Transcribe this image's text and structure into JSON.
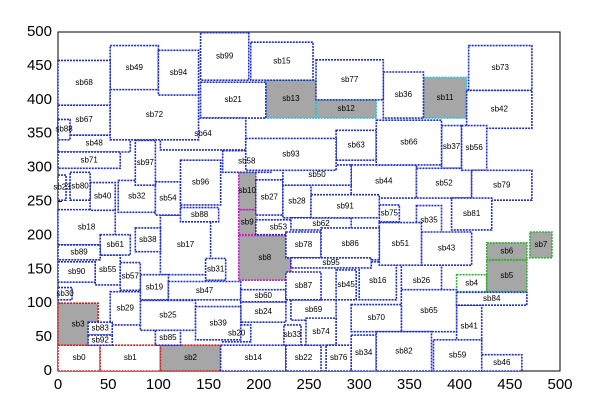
{
  "chart_data": {
    "type": "rectangles",
    "color": "#1f2fc8",
    "fill": "#a6a6a6",
    "xlim": [
      0,
      500
    ],
    "ylim": [
      0,
      500
    ],
    "xticks": [
      0,
      50,
      100,
      150,
      200,
      250,
      300,
      350,
      400,
      450,
      500
    ],
    "yticks": [
      0,
      50,
      100,
      150,
      200,
      250,
      300,
      350,
      400,
      450,
      500
    ],
    "blocks": [
      {
        "label": "sb0",
        "x": 0,
        "y": 0,
        "w": 42,
        "h": 38,
        "color": "#d02020"
      },
      {
        "label": "sb1",
        "x": 42,
        "y": 0,
        "w": 60,
        "h": 38,
        "color": "#d02020"
      },
      {
        "label": "sb2",
        "x": 102,
        "y": 0,
        "w": 60,
        "h": 38,
        "color": "#d02020",
        "filled": true
      },
      {
        "label": "sb3",
        "x": 0,
        "y": 38,
        "w": 40,
        "h": 62,
        "color": "#d02020",
        "filled": true
      },
      {
        "label": "sb4",
        "x": 397,
        "y": 117,
        "w": 30,
        "h": 25,
        "color": "#30b030"
      },
      {
        "label": "sb5",
        "x": 427,
        "y": 117,
        "w": 40,
        "h": 47,
        "color": "#30b030",
        "filled": true
      },
      {
        "label": "sb6",
        "x": 427,
        "y": 164,
        "w": 40,
        "h": 25,
        "color": "#30b030",
        "filled": true
      },
      {
        "label": "sb7",
        "x": 470,
        "y": 167,
        "w": 22,
        "h": 38,
        "color": "#30b030",
        "filled": true
      },
      {
        "label": "sb8",
        "x": 180,
        "y": 134,
        "w": 52,
        "h": 66,
        "color": "#c020c0",
        "filled": true
      },
      {
        "label": "sb9",
        "x": 180,
        "y": 201,
        "w": 17,
        "h": 37,
        "color": "#c020c0",
        "filled": true
      },
      {
        "label": "sb10",
        "x": 180,
        "y": 238,
        "w": 17,
        "h": 56,
        "color": "#c020c0",
        "filled": true
      },
      {
        "label": "sb11",
        "x": 364,
        "y": 373,
        "w": 43,
        "h": 60,
        "color": "#30c0d8",
        "filled": true
      },
      {
        "label": "sb12",
        "x": 257,
        "y": 373,
        "w": 60,
        "h": 27,
        "color": "#30c0d8",
        "filled": true
      },
      {
        "label": "sb13",
        "x": 207,
        "y": 373,
        "w": 50,
        "h": 56,
        "color": "#30c0d8",
        "filled": true
      },
      {
        "label": "sb14",
        "x": 162,
        "y": 0,
        "w": 65,
        "h": 38
      },
      {
        "label": "sb15",
        "x": 192,
        "y": 429,
        "w": 62,
        "h": 56
      },
      {
        "label": "sb16",
        "x": 300,
        "y": 105,
        "w": 37,
        "h": 56
      },
      {
        "label": "sb17",
        "x": 102,
        "y": 142,
        "w": 50,
        "h": 88
      },
      {
        "label": "sb18",
        "x": 0,
        "y": 186,
        "w": 57,
        "h": 52
      },
      {
        "label": "sb19",
        "x": 82,
        "y": 105,
        "w": 28,
        "h": 37
      },
      {
        "label": "sb20",
        "x": 164,
        "y": 43,
        "w": 28,
        "h": 25
      },
      {
        "label": "sb21",
        "x": 142,
        "y": 373,
        "w": 65,
        "h": 53
      },
      {
        "label": "sb22",
        "x": 227,
        "y": 0,
        "w": 35,
        "h": 38
      },
      {
        "label": "sb23",
        "x": 0,
        "y": 252,
        "w": 8,
        "h": 37
      },
      {
        "label": "sb24",
        "x": 182,
        "y": 72,
        "w": 45,
        "h": 30
      },
      {
        "label": "sb25",
        "x": 82,
        "y": 60,
        "w": 55,
        "h": 44
      },
      {
        "label": "sb26",
        "x": 342,
        "y": 105,
        "w": 40,
        "h": 56
      },
      {
        "label": "sb27",
        "x": 197,
        "y": 230,
        "w": 27,
        "h": 52
      },
      {
        "label": "sb28",
        "x": 224,
        "y": 226,
        "w": 28,
        "h": 49
      },
      {
        "label": "sb29",
        "x": 52,
        "y": 68,
        "w": 30,
        "h": 49
      },
      {
        "label": "sb30",
        "x": 0,
        "y": 105,
        "w": 14,
        "h": 18
      },
      {
        "label": "sb31",
        "x": 147,
        "y": 134,
        "w": 20,
        "h": 32
      },
      {
        "label": "sb32",
        "x": 60,
        "y": 234,
        "w": 37,
        "h": 47
      },
      {
        "label": "sb33",
        "x": 225,
        "y": 38,
        "w": 17,
        "h": 30
      },
      {
        "label": "sb34",
        "x": 292,
        "y": 0,
        "w": 25,
        "h": 53
      },
      {
        "label": "sb35",
        "x": 357,
        "y": 200,
        "w": 25,
        "h": 44
      },
      {
        "label": "sb36",
        "x": 324,
        "y": 373,
        "w": 40,
        "h": 68
      },
      {
        "label": "sb37",
        "x": 382,
        "y": 299,
        "w": 20,
        "h": 63
      },
      {
        "label": "sb38",
        "x": 77,
        "y": 176,
        "w": 25,
        "h": 35
      },
      {
        "label": "sb39",
        "x": 137,
        "y": 46,
        "w": 45,
        "h": 49
      },
      {
        "label": "sb40",
        "x": 32,
        "y": 237,
        "w": 25,
        "h": 41
      },
      {
        "label": "sb41",
        "x": 397,
        "y": 34,
        "w": 25,
        "h": 63
      },
      {
        "label": "sb42",
        "x": 407,
        "y": 358,
        "w": 65,
        "h": 56
      },
      {
        "label": "sb43",
        "x": 362,
        "y": 156,
        "w": 50,
        "h": 49
      },
      {
        "label": "sb44",
        "x": 292,
        "y": 255,
        "w": 65,
        "h": 49
      },
      {
        "label": "sb45",
        "x": 277,
        "y": 105,
        "w": 20,
        "h": 44
      },
      {
        "label": "sb46",
        "x": 422,
        "y": 0,
        "w": 40,
        "h": 24
      },
      {
        "label": "sb47",
        "x": 110,
        "y": 105,
        "w": 72,
        "h": 27
      },
      {
        "label": "sb48",
        "x": 0,
        "y": 323,
        "w": 72,
        "h": 25
      },
      {
        "label": "sb49",
        "x": 52,
        "y": 414,
        "w": 48,
        "h": 66
      },
      {
        "label": "sb50",
        "x": 224,
        "y": 274,
        "w": 68,
        "h": 30
      },
      {
        "label": "sb51",
        "x": 320,
        "y": 156,
        "w": 42,
        "h": 63
      },
      {
        "label": "sb52",
        "x": 357,
        "y": 255,
        "w": 55,
        "h": 44
      },
      {
        "label": "sb53",
        "x": 197,
        "y": 201,
        "w": 45,
        "h": 22
      },
      {
        "label": "sb54",
        "x": 97,
        "y": 230,
        "w": 25,
        "h": 49
      },
      {
        "label": "sb55",
        "x": 37,
        "y": 127,
        "w": 25,
        "h": 44
      },
      {
        "label": "sb56",
        "x": 402,
        "y": 296,
        "w": 25,
        "h": 66
      },
      {
        "label": "sb57",
        "x": 62,
        "y": 119,
        "w": 20,
        "h": 41
      },
      {
        "label": "sb58",
        "x": 164,
        "y": 293,
        "w": 48,
        "h": 32
      },
      {
        "label": "sb59",
        "x": 374,
        "y": 0,
        "w": 48,
        "h": 46
      },
      {
        "label": "sb60",
        "x": 182,
        "y": 102,
        "w": 45,
        "h": 18
      },
      {
        "label": "sb61",
        "x": 42,
        "y": 171,
        "w": 30,
        "h": 30
      },
      {
        "label": "sb62",
        "x": 232,
        "y": 208,
        "w": 60,
        "h": 18
      },
      {
        "label": "sb63",
        "x": 277,
        "y": 311,
        "w": 40,
        "h": 44
      },
      {
        "label": "sb64",
        "x": 102,
        "y": 326,
        "w": 85,
        "h": 47
      },
      {
        "label": "sb65",
        "x": 342,
        "y": 58,
        "w": 55,
        "h": 62
      },
      {
        "label": "sb66",
        "x": 317,
        "y": 304,
        "w": 65,
        "h": 66
      },
      {
        "label": "sb67",
        "x": 0,
        "y": 348,
        "w": 52,
        "h": 44
      },
      {
        "label": "sb68",
        "x": 0,
        "y": 392,
        "w": 52,
        "h": 66
      },
      {
        "label": "sb69",
        "x": 232,
        "y": 75,
        "w": 45,
        "h": 30
      },
      {
        "label": "sb70",
        "x": 292,
        "y": 58,
        "w": 50,
        "h": 40
      },
      {
        "label": "sb71",
        "x": 0,
        "y": 299,
        "w": 62,
        "h": 24
      },
      {
        "label": "sb72",
        "x": 52,
        "y": 341,
        "w": 88,
        "h": 74
      },
      {
        "label": "sb73",
        "x": 409,
        "y": 414,
        "w": 63,
        "h": 66
      },
      {
        "label": "sb74",
        "x": 247,
        "y": 38,
        "w": 30,
        "h": 40
      },
      {
        "label": "sb75",
        "x": 320,
        "y": 220,
        "w": 20,
        "h": 25
      },
      {
        "label": "sb76",
        "x": 267,
        "y": 0,
        "w": 25,
        "h": 38
      },
      {
        "label": "sb77",
        "x": 257,
        "y": 400,
        "w": 67,
        "h": 59
      },
      {
        "label": "sb78",
        "x": 227,
        "y": 167,
        "w": 35,
        "h": 38
      },
      {
        "label": "sb79",
        "x": 412,
        "y": 252,
        "w": 60,
        "h": 44
      },
      {
        "label": "sb80",
        "x": 12,
        "y": 252,
        "w": 20,
        "h": 41
      },
      {
        "label": "sb81",
        "x": 392,
        "y": 208,
        "w": 40,
        "h": 47
      },
      {
        "label": "sb82",
        "x": 317,
        "y": 0,
        "w": 55,
        "h": 58
      },
      {
        "label": "sb83",
        "x": 30,
        "y": 53,
        "w": 24,
        "h": 19
      },
      {
        "label": "sb84",
        "x": 397,
        "y": 97,
        "w": 70,
        "h": 19
      },
      {
        "label": "sb85",
        "x": 97,
        "y": 38,
        "w": 25,
        "h": 22
      },
      {
        "label": "sb86",
        "x": 262,
        "y": 164,
        "w": 58,
        "h": 47
      },
      {
        "label": "sb87",
        "x": 227,
        "y": 105,
        "w": 35,
        "h": 41
      },
      {
        "label": "sb88",
        "x": 0,
        "y": 341,
        "w": 12,
        "h": 30
      },
      {
        "label": "sb88",
        "x": 122,
        "y": 220,
        "w": 38,
        "h": 21
      },
      {
        "label": "sb89",
        "x": 0,
        "y": 164,
        "w": 42,
        "h": 22
      },
      {
        "label": "sb90",
        "x": 0,
        "y": 131,
        "w": 37,
        "h": 30
      },
      {
        "label": "sb91",
        "x": 252,
        "y": 226,
        "w": 68,
        "h": 34
      },
      {
        "label": "sb92",
        "x": 30,
        "y": 38,
        "w": 24,
        "h": 15
      },
      {
        "label": "sb93",
        "x": 187,
        "y": 296,
        "w": 90,
        "h": 47
      },
      {
        "label": "sb94",
        "x": 100,
        "y": 407,
        "w": 40,
        "h": 66
      },
      {
        "label": "sb95",
        "x": 232,
        "y": 152,
        "w": 80,
        "h": 15
      },
      {
        "label": "sb96",
        "x": 122,
        "y": 245,
        "w": 40,
        "h": 66
      },
      {
        "label": "sb97",
        "x": 77,
        "y": 274,
        "w": 20,
        "h": 66
      },
      {
        "label": "sb99",
        "x": 142,
        "y": 429,
        "w": 48,
        "h": 70
      }
    ]
  }
}
